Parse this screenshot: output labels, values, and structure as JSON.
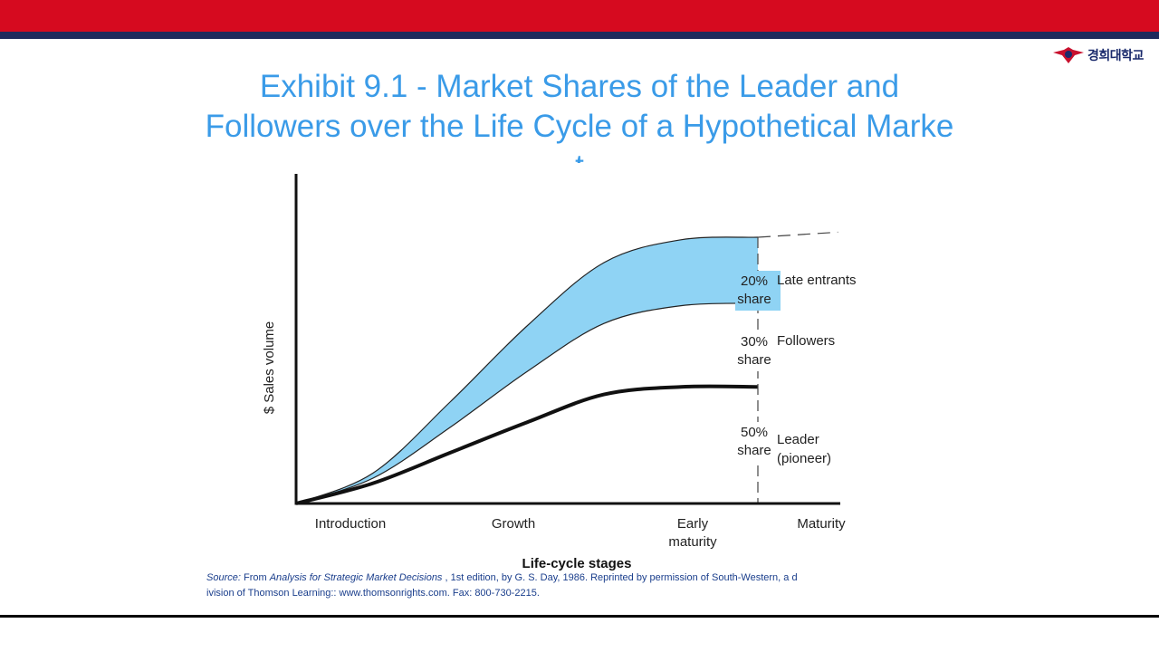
{
  "header": {
    "logo_text": "경희대학교",
    "accent_red": "#d60a1f",
    "accent_navy": "#1f2a5c"
  },
  "slide": {
    "title_line1": "Exhibit 9.1 - Market Shares of the Leader and",
    "title_line2": "Followers over the Life Cycle of a Hypothetical Marke",
    "title_line3": "t",
    "title_color": "#3a9be8"
  },
  "chart_data": {
    "type": "area",
    "ylabel": "$ Sales volume",
    "xlabel": "Life-cycle stages",
    "categories": [
      "Introduction",
      "Growth",
      "Early maturity",
      "Maturity"
    ],
    "category_lines": [
      [
        "Introduction"
      ],
      [
        "Growth"
      ],
      [
        "Early",
        "maturity"
      ],
      [
        "Maturity"
      ]
    ],
    "grid": false,
    "fill_color": "#8fd3f4",
    "shares": [
      {
        "percent": "20%",
        "word": "share",
        "label_lines": [
          "Late entrants"
        ]
      },
      {
        "percent": "30%",
        "word": "share",
        "label_lines": [
          "Followers"
        ]
      },
      {
        "percent": "50%",
        "word": "share",
        "label_lines": [
          "Leader",
          "(pioneer)"
        ]
      }
    ],
    "x": [
      0,
      0.5,
      1,
      1.5,
      2,
      2.5,
      3
    ],
    "series": [
      {
        "values": [
          0,
          8,
          20,
          32,
          43,
          46,
          46
        ]
      },
      {
        "values": [
          0,
          10,
          30,
          52,
          71,
          78,
          79
        ]
      },
      {
        "values": [
          0,
          12,
          40,
          70,
          95,
          104,
          105
        ]
      }
    ]
  },
  "footer": {
    "source_label": "Source:",
    "source_from": " From ",
    "source_book": "Analysis for Strategic Market Decisions",
    "source_rest_line1": " , 1st edition, by G. S. Day, 1986. Reprinted by permission of South-Western, a d",
    "source_line2": "ivision of Thomson Learning:: www.thomsonrights.com. Fax: 800-730-2215."
  }
}
